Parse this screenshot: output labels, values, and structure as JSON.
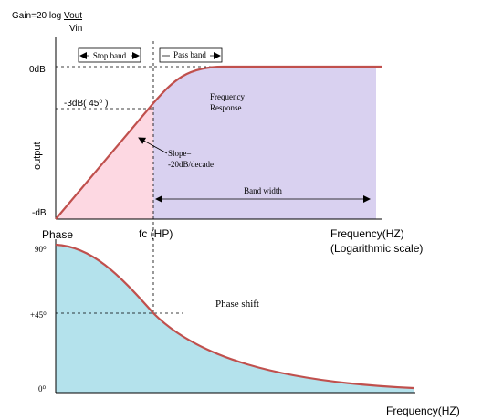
{
  "gain_formula": {
    "prefix": "Gain=20 log ",
    "numerator": "Vout",
    "denominator": "Vin"
  },
  "top_plot": {
    "y_axis_label": "output",
    "tick_top": "0dB",
    "tick_3db": "-3dB( 45⁰ )",
    "tick_bottom": "-dB",
    "stop_band": "Stop band",
    "pass_band": "Pass band",
    "response_line1": "Frequency",
    "response_line2": "Response",
    "slope_line1": "Slope=",
    "slope_line2": "-20dB/decade",
    "bandwidth": "Band width",
    "fc_label": "fc (HP)",
    "x_label_line1": "Frequency(HZ)",
    "x_label_line2": "(Logarithmic scale)",
    "colors": {
      "stop_fill": "#fdd8e2",
      "pass_fill": "#d9d1f0",
      "curve": "#c0504d"
    }
  },
  "bottom_plot": {
    "title": "Phase",
    "tick_90": "90⁰",
    "tick_45": "+45⁰",
    "tick_0": "0⁰",
    "shift_label": "Phase shift",
    "x_label": "Frequency(HZ)",
    "colors": {
      "fill": "#b4e2ec",
      "curve": "#c0504d"
    }
  }
}
